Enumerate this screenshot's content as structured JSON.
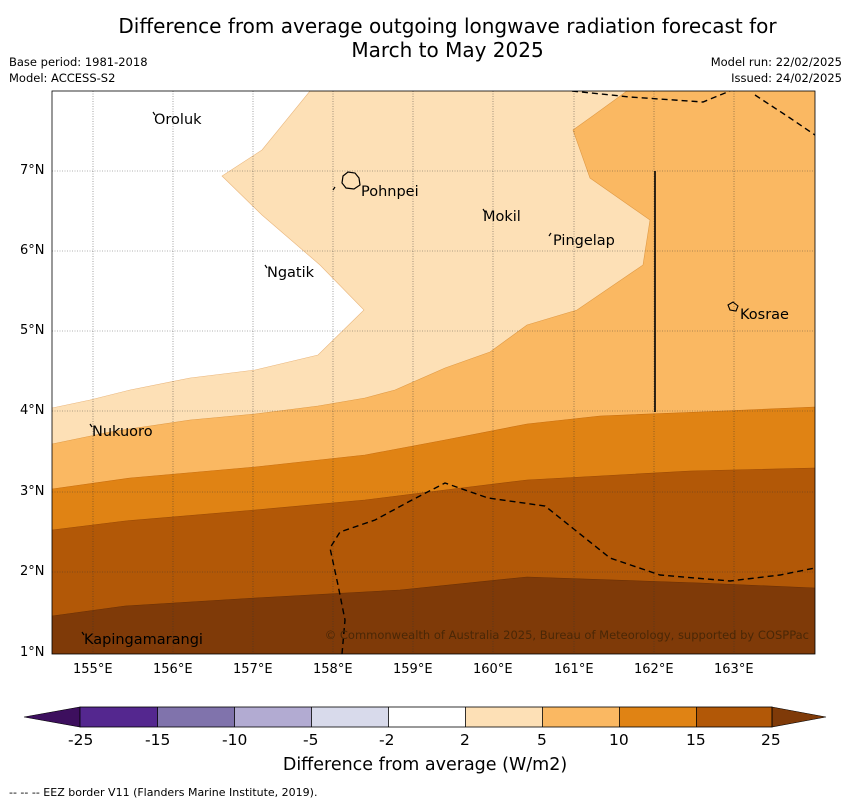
{
  "title": {
    "line1": "Difference from average outgoing longwave radiation forecast for",
    "line2": "March to May 2025"
  },
  "meta": {
    "base_period": "Base period: 1981-2018",
    "model": "Model: ACCESS-S2",
    "model_run": "Model run: 22/02/2025",
    "issued": "Issued: 24/02/2025"
  },
  "map": {
    "lon_ticks": [
      "155°E",
      "156°E",
      "157°E",
      "158°E",
      "159°E",
      "160°E",
      "161°E",
      "162°E",
      "163°E"
    ],
    "lat_ticks": [
      "1°N",
      "2°N",
      "3°N",
      "4°N",
      "5°N",
      "6°N",
      "7°N"
    ],
    "places": [
      {
        "name": "Oroluk"
      },
      {
        "name": "Pohnpei"
      },
      {
        "name": "Mokil"
      },
      {
        "name": "Pingelap"
      },
      {
        "name": "Ngatik"
      },
      {
        "name": "Kosrae"
      },
      {
        "name": "Nukuoro"
      },
      {
        "name": "Kapingamarangi"
      }
    ],
    "copyright": "© Commonwealth of Australia 2025, Bureau of Meteorology, supported by COSPPac",
    "fill_colors": {
      "2_to_5": "#fde0b6",
      "5_to_10": "#fab862",
      "10_to_15": "#e08314",
      "15_to_25": "#b25807",
      "above_25": "#7f3a08"
    }
  },
  "colorbar": {
    "ticks": [
      "-25",
      "-15",
      "-10",
      "-5",
      "-2",
      "2",
      "5",
      "10",
      "15",
      "25"
    ],
    "colors": [
      "#3d0f5e",
      "#54278f",
      "#8073ac",
      "#b2abd2",
      "#d8daeb",
      "#ffffff",
      "#fde0b6",
      "#fab862",
      "#e08314",
      "#b25807",
      "#7f3a08"
    ],
    "label": "Difference from average (W/m2)"
  },
  "footnote": "-- -- -- EEZ border V11 (Flanders Marine Institute, 2019)."
}
